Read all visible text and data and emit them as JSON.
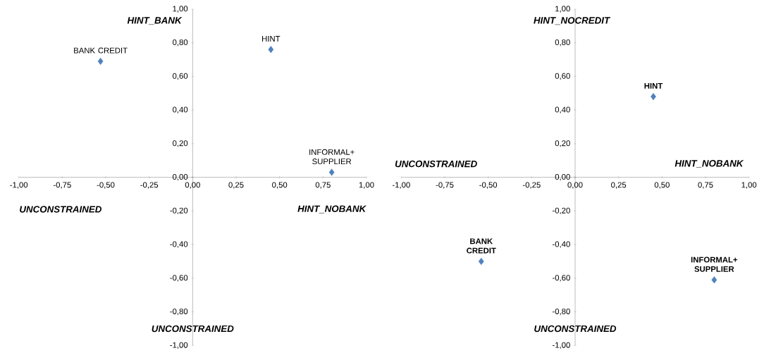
{
  "chart_data": [
    {
      "type": "scatter",
      "marker": "diamond",
      "xlim": [
        -1,
        1
      ],
      "ylim": [
        -1,
        1
      ],
      "xticks": [
        {
          "value": -1,
          "label": "-1,00"
        },
        {
          "value": -0.75,
          "label": "-0,75"
        },
        {
          "value": -0.5,
          "label": "-0,50"
        },
        {
          "value": -0.25,
          "label": "-0,25"
        },
        {
          "value": 0,
          "label": "0,00"
        },
        {
          "value": 0.25,
          "label": "0,25"
        },
        {
          "value": 0.5,
          "label": "0,50"
        },
        {
          "value": 0.75,
          "label": "0,75"
        },
        {
          "value": 1,
          "label": "1,00"
        }
      ],
      "yticks": [
        {
          "value": -1,
          "label": "-1,00"
        },
        {
          "value": -0.8,
          "label": "-0,80"
        },
        {
          "value": -0.6,
          "label": "-0,60"
        },
        {
          "value": -0.4,
          "label": "-0,40"
        },
        {
          "value": -0.2,
          "label": "-0,20"
        },
        {
          "value": 0,
          "label": "0,00"
        },
        {
          "value": 0.2,
          "label": "0,20"
        },
        {
          "value": 0.4,
          "label": "0,40"
        },
        {
          "value": 0.6,
          "label": "0,60"
        },
        {
          "value": 0.8,
          "label": "0,80"
        },
        {
          "value": 1,
          "label": "1,00"
        }
      ],
      "series": [
        {
          "name": "BANK CREDIT",
          "color": "#4f81bd",
          "x": [
            -0.53
          ],
          "values": [
            0.69
          ]
        },
        {
          "name": "HINT",
          "color": "#4f81bd",
          "x": [
            0.45
          ],
          "values": [
            0.76
          ]
        },
        {
          "name": "INFORMAL+ SUPPLIER",
          "color": "#4f81bd",
          "x": [
            0.8
          ],
          "values": [
            0.03
          ]
        }
      ],
      "annotations": [
        "HINT_BANK",
        "UNCONSTRAINED",
        "HINT_NOBANK",
        "UNCONSTRAINED"
      ]
    },
    {
      "type": "scatter",
      "marker": "diamond",
      "xlim": [
        -1,
        1
      ],
      "ylim": [
        -1,
        1
      ],
      "xticks": [
        {
          "value": -1,
          "label": "-1,00"
        },
        {
          "value": -0.75,
          "label": "-0,75"
        },
        {
          "value": -0.5,
          "label": "-0,50"
        },
        {
          "value": -0.25,
          "label": "-0,25"
        },
        {
          "value": 0,
          "label": "0,00"
        },
        {
          "value": 0.25,
          "label": "0,25"
        },
        {
          "value": 0.5,
          "label": "0,50"
        },
        {
          "value": 0.75,
          "label": "0,75"
        },
        {
          "value": 1,
          "label": "1,00"
        }
      ],
      "yticks": [
        {
          "value": -1,
          "label": "-1,00"
        },
        {
          "value": -0.8,
          "label": "-0,80"
        },
        {
          "value": -0.6,
          "label": "-0,60"
        },
        {
          "value": -0.4,
          "label": "-0,40"
        },
        {
          "value": -0.2,
          "label": "-0,20"
        },
        {
          "value": 0,
          "label": "0,00"
        },
        {
          "value": 0.2,
          "label": "0,20"
        },
        {
          "value": 0.4,
          "label": "0,40"
        },
        {
          "value": 0.6,
          "label": "0,60"
        },
        {
          "value": 0.8,
          "label": "0,80"
        },
        {
          "value": 1,
          "label": "1,00"
        }
      ],
      "series": [
        {
          "name": "HINT",
          "color": "#4f81bd",
          "x": [
            0.45
          ],
          "values": [
            0.48
          ]
        },
        {
          "name": "BANK CREDIT",
          "color": "#4f81bd",
          "x": [
            -0.54
          ],
          "values": [
            -0.5
          ]
        },
        {
          "name": "INFORMAL+ SUPPLIER",
          "color": "#4f81bd",
          "x": [
            0.8
          ],
          "values": [
            -0.61
          ]
        }
      ],
      "annotations": [
        "HINT_NOCREDIT",
        "UNCONSTRAINED",
        "HINT_NOBANK",
        "UNCONSTRAINED"
      ]
    }
  ]
}
